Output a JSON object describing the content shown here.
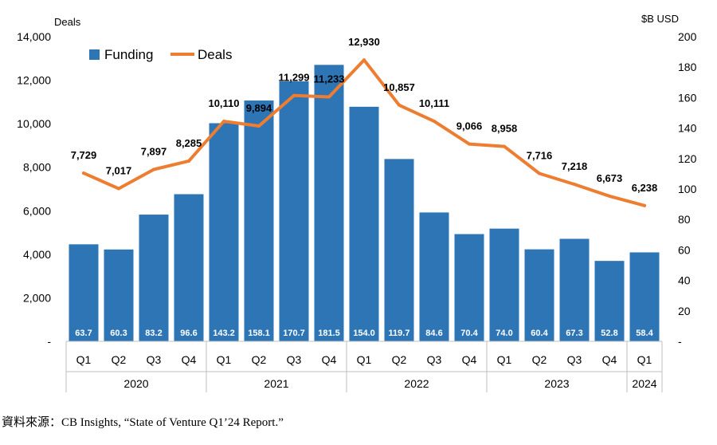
{
  "chart_data": {
    "type": "bar",
    "title": "",
    "y_left_label": "Deals",
    "y_right_label": "$B USD",
    "y_left_lim": [
      0,
      14000
    ],
    "y_left_ticks": [
      "-",
      "2,000",
      "4,000",
      "6,000",
      "8,000",
      "10,000",
      "12,000",
      "14,000"
    ],
    "y_left_tick_values": [
      0,
      2000,
      4000,
      6000,
      8000,
      10000,
      12000,
      14000
    ],
    "y_right_lim": [
      0,
      200
    ],
    "y_right_ticks": [
      "-",
      "20",
      "40",
      "60",
      "80",
      "100",
      "120",
      "140",
      "160",
      "180",
      "200"
    ],
    "y_right_tick_values": [
      0,
      20,
      40,
      60,
      80,
      100,
      120,
      140,
      160,
      180,
      200
    ],
    "legend": {
      "placement": "top-left",
      "funding_label": "Funding",
      "deals_label": "Deals"
    },
    "categories": [
      "Q1",
      "Q2",
      "Q3",
      "Q4",
      "Q1",
      "Q2",
      "Q3",
      "Q4",
      "Q1",
      "Q2",
      "Q3",
      "Q4",
      "Q1",
      "Q2",
      "Q3",
      "Q4",
      "Q1"
    ],
    "years": [
      {
        "label": "2020",
        "count": 4
      },
      {
        "label": "2021",
        "count": 4
      },
      {
        "label": "2022",
        "count": 4
      },
      {
        "label": "2023",
        "count": 4
      },
      {
        "label": "2024",
        "count": 1
      }
    ],
    "series": [
      {
        "name": "Funding",
        "kind": "bar",
        "axis": "right",
        "color": "#2e75b6",
        "values": [
          63.7,
          60.3,
          83.2,
          96.6,
          143.2,
          158.1,
          170.7,
          181.5,
          154.0,
          119.7,
          84.6,
          70.4,
          74.0,
          60.4,
          67.3,
          52.8,
          58.4
        ],
        "labels": [
          "63.7",
          "60.3",
          "83.2",
          "96.6",
          "143.2",
          "158.1",
          "170.7",
          "181.5",
          "154.0",
          "119.7",
          "84.6",
          "70.4",
          "74.0",
          "60.4",
          "67.3",
          "52.8",
          "58.4"
        ]
      },
      {
        "name": "Deals",
        "kind": "line",
        "axis": "left",
        "color": "#ed7d31",
        "values": [
          7729,
          7017,
          7897,
          8285,
          10110,
          9894,
          11299,
          11233,
          12930,
          10857,
          10111,
          9066,
          8958,
          7716,
          7218,
          6673,
          6238
        ],
        "labels": [
          "7,729",
          "7,017",
          "7,897",
          "8,285",
          "10,110",
          "9,894",
          "11,299",
          "11,233",
          "12,930",
          "10,857",
          "10,111",
          "9,066",
          "8,958",
          "7,716",
          "7,218",
          "6,673",
          "6,238"
        ]
      }
    ]
  },
  "source_text": "資料來源：CB Insights, “State of Venture Q1’24 Report.”"
}
